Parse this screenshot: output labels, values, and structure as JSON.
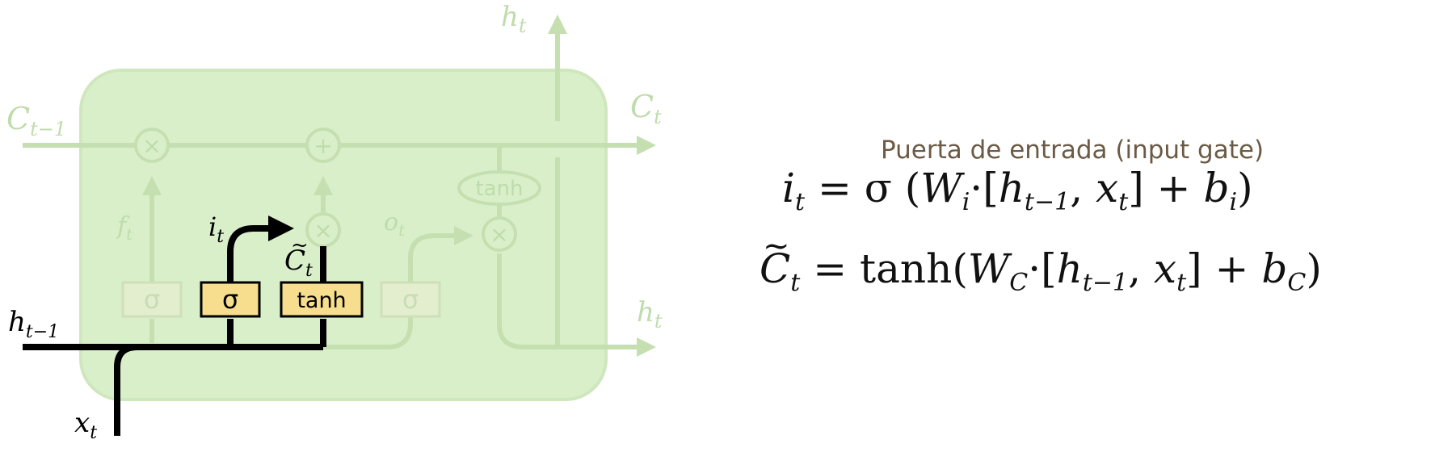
{
  "diagram": {
    "labels": {
      "c_prev": "C",
      "c_prev_sub": "t−1",
      "c_next": "C",
      "c_next_sub": "t",
      "h_top": "h",
      "h_top_sub": "t",
      "h_right": "h",
      "h_right_sub": "t",
      "h_prev": "h",
      "h_prev_sub": "t−1",
      "x_in": "x",
      "x_in_sub": "t",
      "f_t": "f",
      "f_t_sub": "t",
      "i_t": "i",
      "i_t_sub": "t",
      "o_t": "o",
      "o_t_sub": "t",
      "ctilde": "C",
      "ctilde_sub": "t",
      "ctilde_mark": "~"
    },
    "gates": {
      "forget_sigma": "σ",
      "input_sigma": "σ",
      "input_tanh": "tanh",
      "output_sigma": "σ",
      "cell_tanh": "tanh"
    },
    "ops": {
      "mult_forget": "×",
      "add_cell": "+",
      "mult_input": "×",
      "mult_output": "×"
    },
    "colors": {
      "cell_bg": "#d9efca",
      "faded_line": "#c5dfb1",
      "faded_text": "#bfdcab",
      "highlight_gate": "#f7dd8e",
      "active_line": "#000000"
    }
  },
  "equations": {
    "title": "Puerta de entrada (input gate)",
    "eq1": {
      "lhs": "i",
      "lhs_sub": "t",
      "eq": " = σ (",
      "w": "W",
      "w_sub": "i",
      "dot": "·[",
      "h": "h",
      "h_sub": "t−1",
      "comma": ", ",
      "x": "x",
      "x_sub": "t",
      "close": "]  +  ",
      "b": "b",
      "b_sub": "i",
      "end": ")"
    },
    "eq2": {
      "lhs": "C",
      "lhs_sub": "t",
      "tilde": "~",
      "eq": " = tanh(",
      "w": "W",
      "w_sub": "C",
      "dot": "·[",
      "h": "h",
      "h_sub": "t−1",
      "comma": ", ",
      "x": "x",
      "x_sub": "t",
      "close": "]  +  ",
      "b": "b",
      "b_sub": "C",
      "end": ")"
    }
  }
}
